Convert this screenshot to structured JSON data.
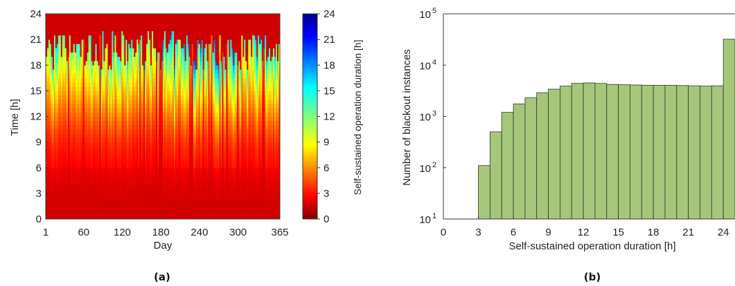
{
  "chart_data": [
    {
      "type": "heatmap",
      "panel_label": "(a)",
      "xlabel": "Day",
      "ylabel": "Time [h]",
      "xlim": [
        1,
        365
      ],
      "ylim": [
        0,
        24
      ],
      "xticks": [
        1,
        60,
        120,
        180,
        240,
        300,
        365
      ],
      "yticks": [
        0,
        3,
        6,
        9,
        12,
        15,
        18,
        21,
        24
      ],
      "colorbar": {
        "label": "Self-sustained operation duration [h]",
        "range": [
          0,
          24
        ],
        "ticks": [
          0,
          3,
          6,
          9,
          12,
          15,
          18,
          21,
          24
        ],
        "colormap": "jet"
      },
      "value_description_hour_boundary": [
        {
          "day_range": [
            1,
            365
          ],
          "full_duration_below_hour": 6
        },
        {
          "day_range": [
            1,
            365
          ],
          "red_orange_zone_hours": [
            14,
            19
          ]
        }
      ]
    },
    {
      "type": "bar",
      "panel_label": "(b)",
      "xlabel": "Self-sustained operation duration [h]",
      "ylabel": "Number of blackout instances",
      "yscale": "log",
      "xlim": [
        0,
        25
      ],
      "ylim_exponent": [
        1,
        5
      ],
      "xticks": [
        0,
        3,
        6,
        9,
        12,
        15,
        18,
        21,
        24
      ],
      "ytick_base": "10",
      "ytick_exponents": [
        "1",
        "2",
        "3",
        "4",
        "5"
      ],
      "bar_color": "#a6c77a",
      "bar_edge": "#333333",
      "bin_width": 1,
      "categories": [
        3,
        4,
        5,
        6,
        7,
        8,
        9,
        10,
        11,
        12,
        13,
        14,
        15,
        16,
        17,
        18,
        19,
        20,
        21,
        22,
        23,
        24
      ],
      "values": [
        110,
        500,
        1200,
        1750,
        2300,
        2900,
        3400,
        3900,
        4400,
        4500,
        4400,
        4200,
        4150,
        4100,
        4050,
        4050,
        4050,
        4000,
        3950,
        3900,
        3950,
        32000
      ]
    }
  ]
}
